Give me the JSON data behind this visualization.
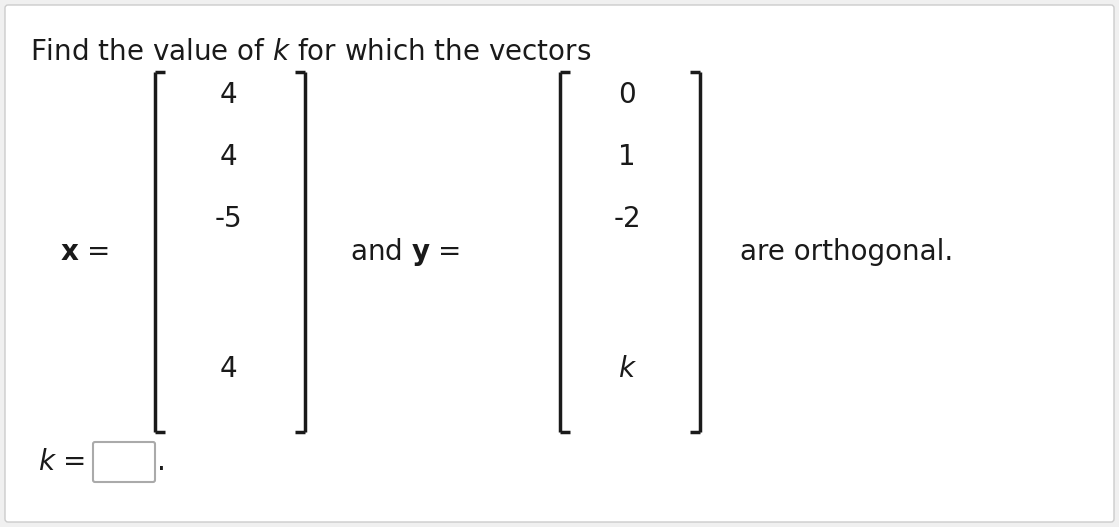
{
  "title": "Find the value of $k$ for which the vectors",
  "x_vector": [
    "4",
    "4",
    "-5",
    "4"
  ],
  "y_vector": [
    "0",
    "1",
    "-2",
    "k"
  ],
  "bg_color": "#f0f0f0",
  "panel_color": "#ffffff",
  "text_color": "#1a1a1a",
  "font_size_title": 20,
  "font_size_body": 20,
  "font_size_vector": 20,
  "fig_width": 11.19,
  "fig_height": 5.27,
  "dpi": 100
}
